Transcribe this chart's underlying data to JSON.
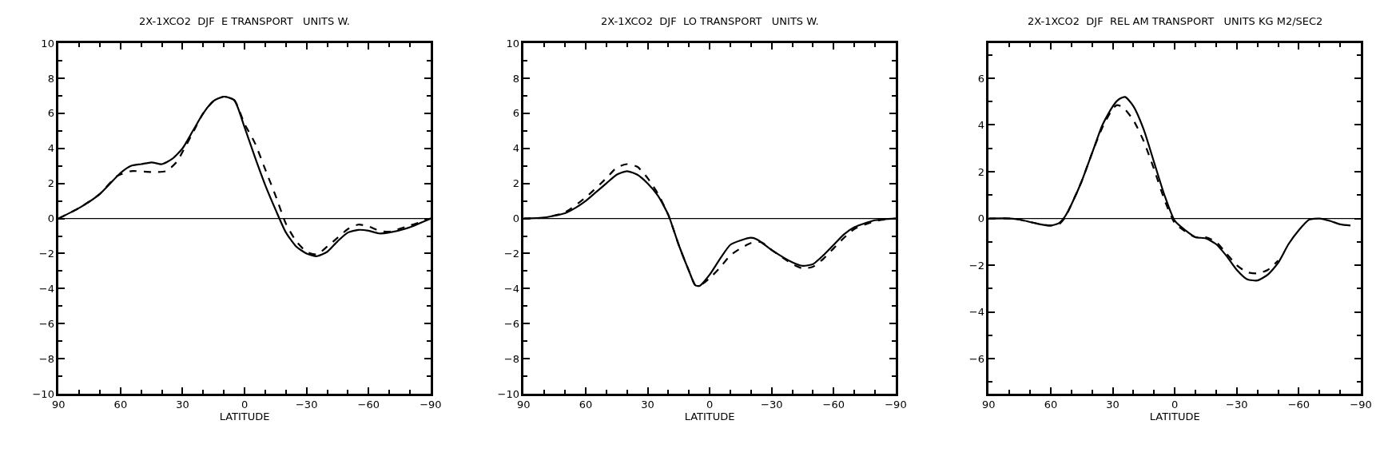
{
  "chart_data": [
    {
      "type": "line",
      "title": "2X-1XCO2  DJF  E TRANSPORT   UNITS W.",
      "xlabel": "LATITUDE",
      "xlim": [
        90,
        -90
      ],
      "xticks": [
        90,
        60,
        30,
        0,
        -30,
        -60,
        -90
      ],
      "ylim": [
        -10,
        10
      ],
      "yticks": [
        -10,
        -8,
        -6,
        -4,
        -2,
        0,
        2,
        4,
        6,
        8,
        10
      ],
      "ref_lines": [
        {
          "axis": "y",
          "value": 0,
          "color": "#000000",
          "line_style": "solid"
        }
      ],
      "series": [
        {
          "color": "#000000",
          "line_style": "solid",
          "x": [
            90,
            80,
            70,
            60,
            55,
            50,
            45,
            40,
            35,
            30,
            25,
            20,
            15,
            10,
            5,
            0,
            -5,
            -10,
            -15,
            -20,
            -25,
            -30,
            -35,
            -40,
            -45,
            -50,
            -55,
            -60,
            -65,
            -70,
            -80,
            -90
          ],
          "values": [
            0,
            0.6,
            1.4,
            2.6,
            3.0,
            3.1,
            3.2,
            3.1,
            3.4,
            4.0,
            5.0,
            6.0,
            6.7,
            6.95,
            6.75,
            5.2,
            3.5,
            1.9,
            0.5,
            -0.8,
            -1.6,
            -2.0,
            -2.15,
            -1.9,
            -1.3,
            -0.8,
            -0.65,
            -0.7,
            -0.85,
            -0.8,
            -0.5,
            0
          ]
        },
        {
          "color": "#000000",
          "line_style": "dashed",
          "x": [
            90,
            80,
            70,
            62,
            55,
            45,
            38,
            33,
            30,
            25,
            20,
            15,
            10,
            5,
            0,
            -5,
            -10,
            -15,
            -20,
            -25,
            -30,
            -35,
            -40,
            -45,
            -50,
            -55,
            -60,
            -65,
            -70,
            -80,
            -90
          ],
          "values": [
            0,
            0.6,
            1.4,
            2.4,
            2.7,
            2.65,
            2.7,
            3.2,
            3.8,
            4.9,
            6.0,
            6.7,
            6.95,
            6.75,
            5.4,
            4.3,
            2.8,
            1.3,
            -0.3,
            -1.3,
            -1.9,
            -2.05,
            -1.6,
            -1.1,
            -0.6,
            -0.35,
            -0.45,
            -0.7,
            -0.75,
            -0.4,
            0
          ]
        }
      ]
    },
    {
      "type": "line",
      "title": "2X-1XCO2  DJF  LO TRANSPORT   UNITS W.",
      "xlabel": "LATITUDE",
      "xlim": [
        90,
        -90
      ],
      "xticks": [
        90,
        60,
        30,
        0,
        -30,
        -60,
        -90
      ],
      "ylim": [
        -10,
        10
      ],
      "yticks": [
        -10,
        -8,
        -6,
        -4,
        -2,
        0,
        2,
        4,
        6,
        8,
        10
      ],
      "ref_lines": [
        {
          "axis": "y",
          "value": 0,
          "color": "#000000",
          "line_style": "solid"
        }
      ],
      "series": [
        {
          "color": "#000000",
          "line_style": "solid",
          "x": [
            90,
            80,
            70,
            65,
            60,
            55,
            50,
            45,
            40,
            35,
            30,
            25,
            20,
            15,
            10,
            7,
            5,
            0,
            -5,
            -10,
            -15,
            -20,
            -23,
            -30,
            -40,
            -45,
            -50,
            -55,
            -60,
            -65,
            -70,
            -80,
            -90
          ],
          "values": [
            0,
            0.05,
            0.3,
            0.6,
            1.0,
            1.5,
            2.0,
            2.5,
            2.7,
            2.5,
            2.0,
            1.3,
            0.2,
            -1.5,
            -3.0,
            -3.8,
            -3.85,
            -3.2,
            -2.3,
            -1.5,
            -1.25,
            -1.1,
            -1.2,
            -1.8,
            -2.5,
            -2.7,
            -2.6,
            -2.1,
            -1.5,
            -0.9,
            -0.5,
            -0.1,
            0
          ]
        },
        {
          "color": "#000000",
          "line_style": "dashed",
          "x": [
            90,
            80,
            70,
            60,
            50,
            45,
            40,
            35,
            30,
            25,
            20,
            15,
            10,
            7,
            5,
            0,
            -5,
            -10,
            -15,
            -20,
            -25,
            -30,
            -40,
            -45,
            -50,
            -55,
            -60,
            -65,
            -70,
            -80,
            -90
          ],
          "values": [
            0,
            0.05,
            0.35,
            1.2,
            2.3,
            2.9,
            3.1,
            2.95,
            2.3,
            1.4,
            0.2,
            -1.5,
            -3.0,
            -3.8,
            -3.85,
            -3.4,
            -2.8,
            -2.1,
            -1.7,
            -1.4,
            -1.35,
            -1.8,
            -2.6,
            -2.85,
            -2.75,
            -2.3,
            -1.7,
            -1.1,
            -0.6,
            -0.15,
            0
          ]
        }
      ]
    },
    {
      "type": "line",
      "title": "2X-1XCO2  DJF  REL AM TRANSPORT   UNITS KG M2/SEC2",
      "xlabel": "LATITUDE",
      "xlim": [
        90,
        -90
      ],
      "xticks": [
        90,
        60,
        30,
        0,
        -30,
        -60,
        -90
      ],
      "ylim": [
        -7.5,
        7.5
      ],
      "yticks": [
        -6,
        -4,
        -2,
        0,
        2,
        4,
        6
      ],
      "ref_lines": [
        {
          "axis": "y",
          "value": 0,
          "color": "#000000",
          "line_style": "solid"
        }
      ],
      "series": [
        {
          "color": "#000000",
          "line_style": "solid",
          "x": [
            90,
            80,
            75,
            70,
            65,
            60,
            56,
            53,
            50,
            45,
            40,
            35,
            30,
            27,
            24,
            20,
            15,
            10,
            5,
            0,
            -5,
            -10,
            -15,
            -20,
            -25,
            -30,
            -35,
            -40,
            -45,
            -50,
            -55,
            -60,
            -65,
            -70,
            -75,
            -80,
            -85
          ],
          "values": [
            0,
            0,
            -0.05,
            -0.15,
            -0.25,
            -0.3,
            -0.2,
            0.1,
            0.6,
            1.6,
            2.8,
            4.0,
            4.8,
            5.1,
            5.2,
            4.8,
            3.8,
            2.4,
            1.0,
            -0.1,
            -0.5,
            -0.8,
            -0.85,
            -1.1,
            -1.6,
            -2.2,
            -2.6,
            -2.65,
            -2.4,
            -1.9,
            -1.1,
            -0.5,
            -0.05,
            0.0,
            -0.1,
            -0.25,
            -0.3
          ]
        },
        {
          "color": "#000000",
          "line_style": "dashed",
          "x": [
            90,
            80,
            75,
            70,
            65,
            60,
            56,
            53,
            50,
            45,
            40,
            35,
            30,
            28,
            25,
            20,
            15,
            10,
            5,
            0,
            -5,
            -10,
            -15,
            -20,
            -25,
            -30,
            -35,
            -40,
            -45,
            -50
          ],
          "values": [
            0,
            0,
            -0.05,
            -0.15,
            -0.25,
            -0.3,
            -0.25,
            0.05,
            0.6,
            1.6,
            2.8,
            3.9,
            4.7,
            4.85,
            4.75,
            4.2,
            3.3,
            2.1,
            0.8,
            -0.2,
            -0.55,
            -0.8,
            -0.8,
            -1.0,
            -1.5,
            -2.0,
            -2.3,
            -2.35,
            -2.2,
            -1.8
          ]
        }
      ]
    }
  ]
}
